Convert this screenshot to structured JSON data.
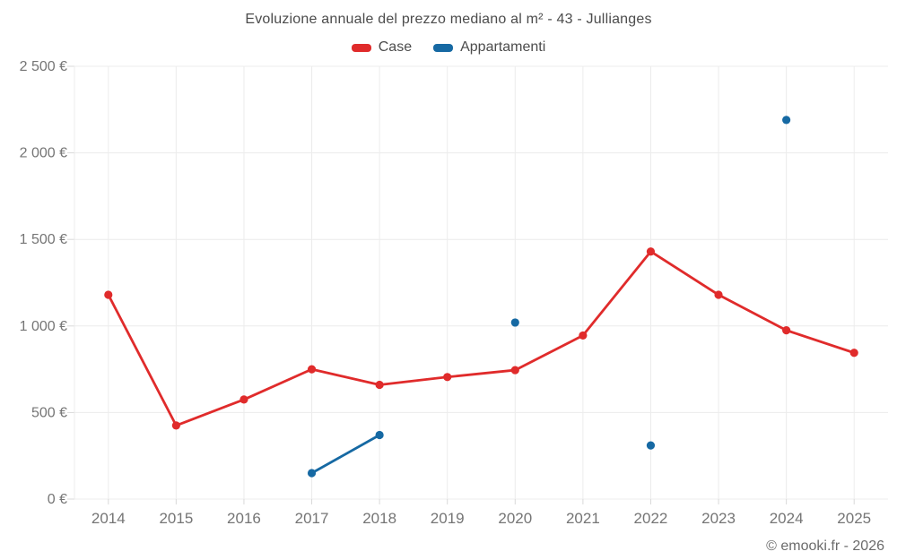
{
  "chart": {
    "footer": "© emooki.fr - 2026"
  },
  "chart_data": {
    "type": "line",
    "title": "Evoluzione annuale del prezzo mediano al m² - 43 - Jullianges",
    "xlabel": "",
    "ylabel": "",
    "categories": [
      "2014",
      "2015",
      "2016",
      "2017",
      "2018",
      "2019",
      "2020",
      "2021",
      "2022",
      "2023",
      "2024",
      "2025"
    ],
    "series": [
      {
        "name": "Case",
        "color": "#e02b2b",
        "values": [
          1180,
          425,
          575,
          750,
          660,
          705,
          745,
          945,
          1430,
          1180,
          975,
          845
        ]
      },
      {
        "name": "Appartamenti",
        "color": "#1669a3",
        "values": [
          null,
          null,
          null,
          150,
          370,
          null,
          1020,
          null,
          310,
          null,
          2190,
          null
        ]
      }
    ],
    "ylim": [
      0,
      2500
    ],
    "ytick_step": 500,
    "yticks": [
      0,
      500,
      1000,
      1500,
      2000,
      2500
    ],
    "ytick_labels": [
      "0 €",
      "500 €",
      "1 000 €",
      "1 500 €",
      "2 000 €",
      "2 500 €"
    ],
    "grid": true,
    "legend_position": "top",
    "grid_color": "#ececec",
    "tick_color": "#d9d9d9",
    "note": "Only consecutive years are connected by line segments; isolated points are markers only."
  }
}
